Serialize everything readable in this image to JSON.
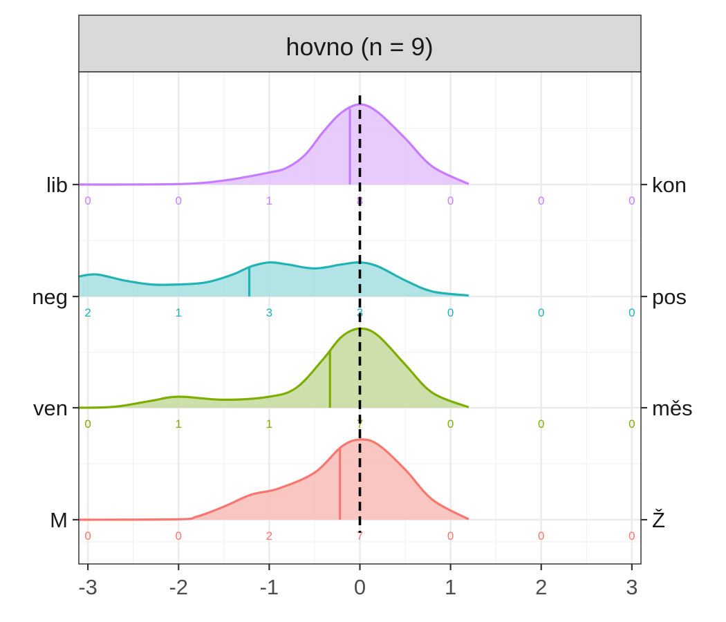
{
  "chart_data": {
    "type": "ridgeline-density",
    "title": "hovno (n = 9)",
    "xlim": [
      -3.1,
      3.1
    ],
    "x_ticks": [
      -3,
      -2,
      -1,
      0,
      1,
      2,
      3
    ],
    "x_tick_labels": [
      "-3",
      "-2",
      "-1",
      "0",
      "1",
      "2",
      "3"
    ],
    "reference_line_x": 0,
    "grid": true,
    "count_positions": [
      -3,
      -2,
      -1,
      0,
      1,
      2,
      3
    ],
    "series": [
      {
        "left_label": "M",
        "right_label": "Ž",
        "color": "#f8766d",
        "fill": "#f9bcb7",
        "mean": -0.22,
        "counts": [
          0,
          0,
          2,
          7,
          0,
          0,
          0
        ],
        "count_labels": [
          "0",
          "0",
          "2",
          "7",
          "0",
          "0",
          "0"
        ],
        "density": [
          [
            -3.1,
            0.0
          ],
          [
            -2.0,
            0.005
          ],
          [
            -1.8,
            0.03
          ],
          [
            -1.5,
            0.13
          ],
          [
            -1.2,
            0.25
          ],
          [
            -0.9,
            0.31
          ],
          [
            -0.5,
            0.47
          ],
          [
            -0.2,
            0.73
          ],
          [
            0.0,
            0.8
          ],
          [
            0.2,
            0.75
          ],
          [
            0.5,
            0.5
          ],
          [
            0.8,
            0.2
          ],
          [
            1.2,
            0.005
          ]
        ]
      },
      {
        "left_label": "ven",
        "right_label": "měs",
        "color": "#7cae00",
        "fill": "#c4d99b",
        "mean": -0.33,
        "counts": [
          0,
          1,
          1,
          7,
          0,
          0,
          0
        ],
        "count_labels": [
          "0",
          "1",
          "1",
          "7",
          "0",
          "0",
          "0"
        ],
        "density": [
          [
            -3.1,
            0.0
          ],
          [
            -2.7,
            0.01
          ],
          [
            -2.3,
            0.07
          ],
          [
            -2.0,
            0.11
          ],
          [
            -1.5,
            0.08
          ],
          [
            -1.0,
            0.11
          ],
          [
            -0.7,
            0.2
          ],
          [
            -0.4,
            0.49
          ],
          [
            -0.2,
            0.71
          ],
          [
            0.0,
            0.79
          ],
          [
            0.2,
            0.72
          ],
          [
            0.5,
            0.43
          ],
          [
            0.8,
            0.15
          ],
          [
            1.2,
            0.005
          ]
        ]
      },
      {
        "left_label": "neg",
        "right_label": "pos",
        "color": "#1fb3b6",
        "fill": "#a5dfe0",
        "mean": -1.22,
        "counts": [
          2,
          1,
          3,
          3,
          0,
          0,
          0
        ],
        "count_labels": [
          "2",
          "1",
          "3",
          "3",
          "0",
          "0",
          "0"
        ],
        "density": [
          [
            -3.1,
            0.2
          ],
          [
            -2.9,
            0.22
          ],
          [
            -2.6,
            0.16
          ],
          [
            -2.3,
            0.12
          ],
          [
            -2.0,
            0.12
          ],
          [
            -1.7,
            0.14
          ],
          [
            -1.4,
            0.22
          ],
          [
            -1.2,
            0.3
          ],
          [
            -1.0,
            0.34
          ],
          [
            -0.8,
            0.32
          ],
          [
            -0.5,
            0.28
          ],
          [
            -0.2,
            0.32
          ],
          [
            0.0,
            0.34
          ],
          [
            0.2,
            0.3
          ],
          [
            0.5,
            0.16
          ],
          [
            0.8,
            0.05
          ],
          [
            1.2,
            0.01
          ]
        ]
      },
      {
        "left_label": "lib",
        "right_label": "kon",
        "color": "#c77cff",
        "fill": "#e4c2fd",
        "mean": -0.11,
        "counts": [
          0,
          0,
          1,
          8,
          0,
          0,
          0
        ],
        "count_labels": [
          "0",
          "0",
          "1",
          "8",
          "0",
          "0",
          "0"
        ],
        "density": [
          [
            -3.1,
            0.0
          ],
          [
            -2.0,
            0.005
          ],
          [
            -1.5,
            0.04
          ],
          [
            -1.0,
            0.12
          ],
          [
            -0.8,
            0.17
          ],
          [
            -0.6,
            0.3
          ],
          [
            -0.4,
            0.53
          ],
          [
            -0.2,
            0.72
          ],
          [
            0.0,
            0.8
          ],
          [
            0.2,
            0.72
          ],
          [
            0.5,
            0.46
          ],
          [
            0.8,
            0.18
          ],
          [
            1.2,
            0.005
          ]
        ]
      }
    ]
  }
}
